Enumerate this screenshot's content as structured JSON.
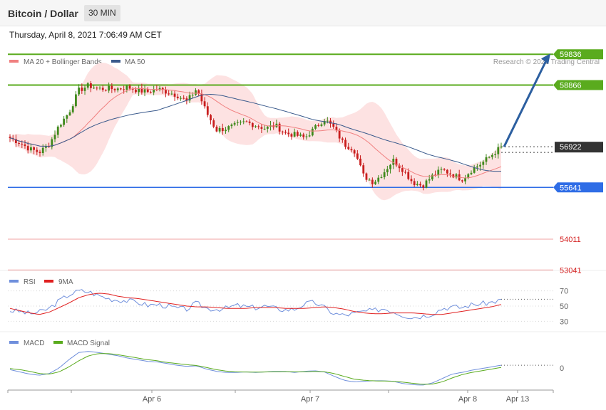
{
  "header": {
    "title": "Bitcoin / Dollar",
    "timeframe": "30 MIN",
    "datetime": "Thursday, April 8, 2021 7:06:49 AM CET"
  },
  "colors": {
    "ma20": "#f08080",
    "ma50": "#3a5a8c",
    "band_fill": "#fde2e2",
    "resistance": "#5aab1e",
    "support": "#2f6de6",
    "lower_levels": "#f2a3a3",
    "current_price_box": "#333333",
    "arrow": "#2c5fa0",
    "rsi": "#6f8fdc",
    "rsi_ma": "#e02020",
    "macd": "#6f8fdc",
    "macd_signal": "#5aab1e",
    "candle_up": "#3f8a1c",
    "candle_down": "#c81e1e"
  },
  "chart_data": [
    {
      "type": "candlestick",
      "title": "Bitcoin / Dollar",
      "timeframe": "30 MIN",
      "legend": [
        {
          "name": "MA 20 + Bollinger Bands",
          "color": "#f08080"
        },
        {
          "name": "MA 50",
          "color": "#3a5a8c"
        }
      ],
      "watermark": "Research © 2021 Trading Central",
      "x_ticks": [
        "Apr 6",
        "Apr 7",
        "Apr 8",
        "Apr 13"
      ],
      "levels": [
        {
          "value": 59836,
          "label": "59836",
          "kind": "resistance"
        },
        {
          "value": 58866,
          "label": "58866",
          "kind": "resistance"
        },
        {
          "value": 56922,
          "label": "56922",
          "kind": "current"
        },
        {
          "value": 55641,
          "label": "55641",
          "kind": "support"
        },
        {
          "value": 54011,
          "label": "54011",
          "kind": "support_low"
        },
        {
          "value": 53041,
          "label": "53041",
          "kind": "support_low"
        }
      ],
      "ylim": [
        52800,
        60200
      ],
      "close_path": [
        57200,
        57050,
        56850,
        56750,
        57000,
        57600,
        58000,
        58700,
        58850,
        58750,
        58750,
        58750,
        58800,
        58700,
        58650,
        58750,
        58650,
        58550,
        58350,
        58750,
        58000,
        57450,
        57500,
        57600,
        57700,
        57600,
        57500,
        57600,
        57350,
        57300,
        57200,
        57500,
        57800,
        57500,
        57000,
        56850,
        56000,
        55800,
        56100,
        56500,
        56200,
        55800,
        55700,
        56000,
        56200,
        56050,
        55900,
        56200,
        56400,
        56650,
        56922
      ],
      "forecast_target": 59836
    },
    {
      "type": "line",
      "title": "RSI",
      "series": [
        {
          "name": "RSI"
        },
        {
          "name": "9MA"
        }
      ],
      "y_ticks": [
        70,
        50,
        30
      ],
      "ylim": [
        20,
        80
      ],
      "rsi": [
        44,
        43,
        40,
        42,
        47,
        57,
        65,
        70,
        69,
        64,
        60,
        58,
        57,
        55,
        51,
        52,
        50,
        47,
        46,
        54,
        47,
        46,
        47,
        51,
        49,
        48,
        50,
        47,
        45,
        46,
        53,
        55,
        48,
        40,
        38,
        40,
        43,
        44,
        47,
        43,
        38,
        35,
        37,
        40,
        47,
        49,
        48,
        52,
        53,
        55,
        58
      ],
      "rsi_ma": [
        47,
        44,
        41,
        39,
        42,
        48,
        54,
        61,
        65,
        67,
        66,
        63,
        61,
        60,
        58,
        56,
        54,
        52,
        50,
        49,
        49,
        48,
        47,
        47,
        47,
        48,
        48,
        48,
        47,
        47,
        47,
        48,
        49,
        48,
        46,
        43,
        41,
        40,
        40,
        41,
        41,
        41,
        40,
        39,
        39,
        41,
        43,
        45,
        47,
        49,
        52
      ]
    },
    {
      "type": "line",
      "title": "MACD",
      "series": [
        {
          "name": "MACD"
        },
        {
          "name": "MACD Signal"
        }
      ],
      "y_ticks": [
        0
      ],
      "ylim": [
        -450,
        450
      ],
      "macd": [
        -30,
        -70,
        -110,
        -130,
        -100,
        0,
        150,
        280,
        300,
        280,
        250,
        220,
        180,
        150,
        120,
        110,
        80,
        50,
        30,
        40,
        -20,
        -60,
        -80,
        -80,
        -70,
        -80,
        -70,
        -60,
        -60,
        -80,
        -60,
        -50,
        -70,
        -150,
        -220,
        -250,
        -240,
        -230,
        -230,
        -240,
        -280,
        -300,
        -310,
        -270,
        -190,
        -110,
        -80,
        -40,
        -10,
        20,
        50
      ],
      "macd_signal": [
        -10,
        -30,
        -60,
        -100,
        -110,
        -70,
        20,
        130,
        220,
        260,
        260,
        240,
        210,
        180,
        150,
        130,
        100,
        80,
        60,
        45,
        10,
        -30,
        -55,
        -70,
        -72,
        -75,
        -72,
        -68,
        -65,
        -70,
        -68,
        -62,
        -68,
        -100,
        -150,
        -200,
        -220,
        -232,
        -235,
        -240,
        -255,
        -275,
        -295,
        -290,
        -250,
        -180,
        -120,
        -80,
        -50,
        -20,
        10
      ]
    }
  ]
}
